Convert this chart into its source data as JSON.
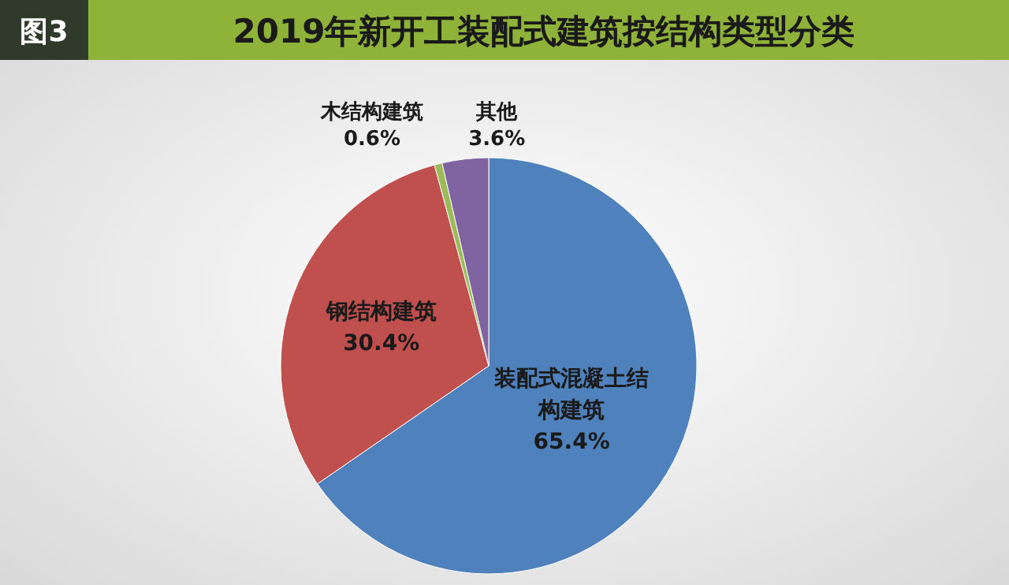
{
  "chart_data": {
    "type": "pie",
    "title": "2019年新开工装配式建筑按结构类型分类",
    "annotations": [
      "图3"
    ],
    "categories": [
      "装配式混凝土结构建筑",
      "钢结构建筑",
      "木结构建筑",
      "其他"
    ],
    "values": [
      65.4,
      30.4,
      0.6,
      3.6
    ],
    "colors": [
      "#4f81bd",
      "#c0504d",
      "#9bbb59",
      "#8064a2"
    ],
    "value_labels": [
      "65.4%",
      "30.4%",
      "0.6%",
      "3.6%"
    ]
  }
}
